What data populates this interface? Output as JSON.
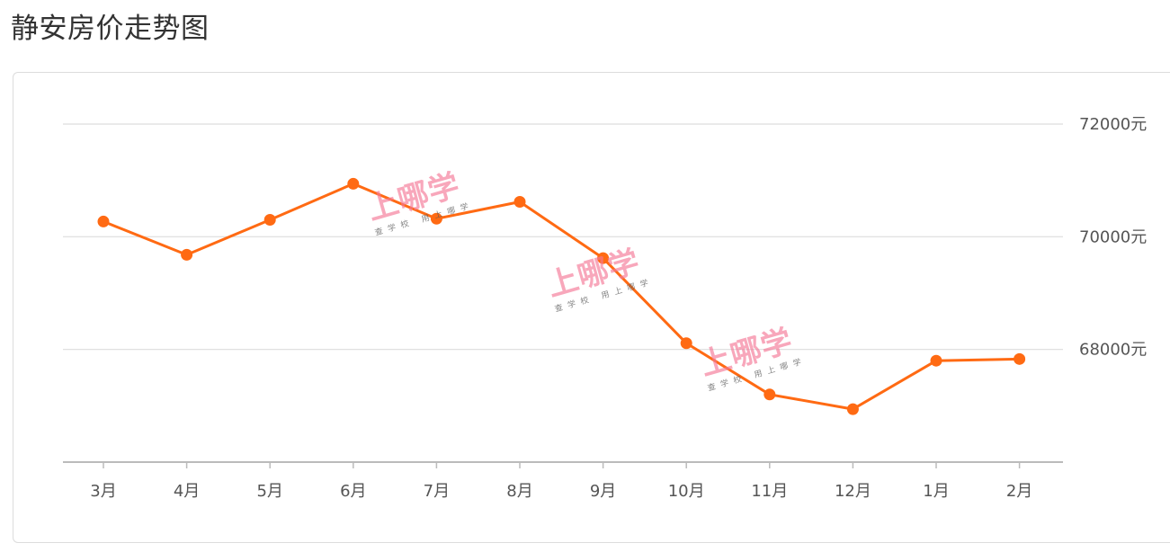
{
  "page": {
    "title": "静安房价走势图"
  },
  "watermark": {
    "main": "上哪学",
    "sub": "查学校  用上哪学"
  },
  "colors": {
    "line": "#ff6a13",
    "grid": "#dddddd",
    "axis": "#bbbbbb",
    "text": "#555555"
  },
  "chart_data": {
    "type": "line",
    "title": "静安房价走势图",
    "categories": [
      "3月",
      "4月",
      "5月",
      "6月",
      "7月",
      "8月",
      "9月",
      "10月",
      "11月",
      "12月",
      "1月",
      "2月"
    ],
    "series": [
      {
        "values": [
          70270,
          69680,
          70300,
          70940,
          70320,
          70620,
          69620,
          68110,
          67200,
          66940,
          67800,
          67830
        ]
      }
    ],
    "ylim": [
      66000,
      72000
    ],
    "yticks": [
      68000,
      70000,
      72000
    ],
    "y_tick_suffix": "元",
    "y_axis_position": "right",
    "grid": true,
    "legend": "none"
  }
}
